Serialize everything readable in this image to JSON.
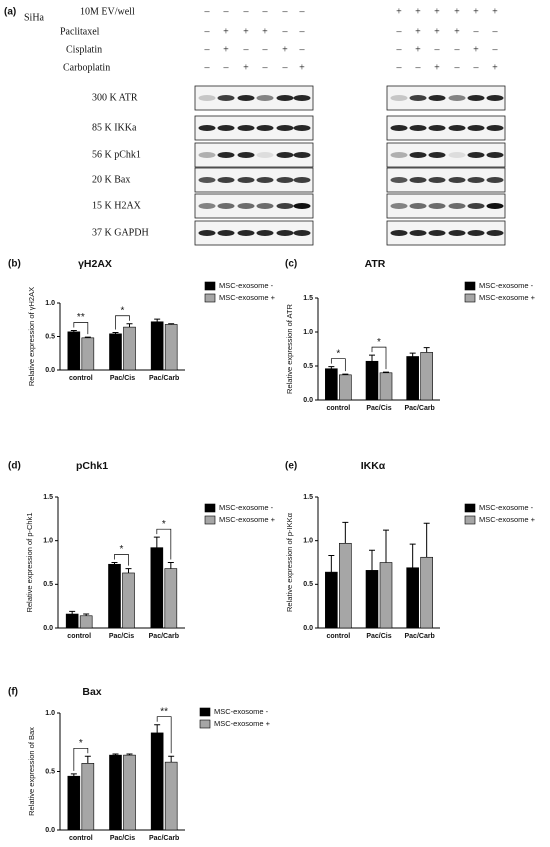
{
  "blot": {
    "panel": "(a)",
    "cell_line": "SiHa",
    "treatments": [
      {
        "name": "10M EV/well",
        "left": [
          "–",
          "–",
          "–",
          "–",
          "–",
          "–"
        ],
        "right": [
          "+",
          "+",
          "+",
          "+",
          "+",
          "+"
        ]
      },
      {
        "name": "Paclitaxel",
        "left": [
          "–",
          "+",
          "+",
          "+",
          "–",
          "–"
        ],
        "right": [
          "–",
          "+",
          "+",
          "+",
          "–",
          "–"
        ]
      },
      {
        "name": "Cisplatin",
        "left": [
          "–",
          "+",
          "–",
          "–",
          "+",
          "–"
        ],
        "right": [
          "–",
          "+",
          "–",
          "–",
          "+",
          "–"
        ]
      },
      {
        "name": "Carboplatin",
        "left": [
          "–",
          "–",
          "+",
          "–",
          "–",
          "+"
        ],
        "right": [
          "–",
          "–",
          "+",
          "–",
          "–",
          "+"
        ]
      }
    ],
    "rows": [
      "300 K ATR",
      "85 K IKKa",
      "56 K pChk1",
      "20 K Bax",
      "15 K H2AX",
      "37 K GAPDH"
    ]
  },
  "chart_data": [
    {
      "type": "bar",
      "panel": "(b)",
      "title": "γH2AX",
      "y_label": "Relative expression of γH2AX",
      "categories": [
        "control",
        "Pac/Cis",
        "Pac/Carb"
      ],
      "series": [
        {
          "name": "MSC-exosome -",
          "color": "#000000",
          "values": [
            0.57,
            0.54,
            0.72
          ],
          "errors": [
            0.02,
            0.02,
            0.04
          ]
        },
        {
          "name": "MSC-exosome +",
          "color": "#a6a6a6",
          "values": [
            0.48,
            0.64,
            0.68
          ],
          "errors": [
            0.01,
            0.05,
            0.01
          ]
        }
      ],
      "ylim": [
        0,
        1
      ],
      "yticks": [
        {
          "value": 0,
          "label": "0.0"
        },
        0.5,
        {
          "value": 1,
          "label": "1.0"
        }
      ],
      "significance": [
        {
          "category": "control",
          "label": "**"
        },
        {
          "category": "Pac/Cis",
          "label": "*"
        }
      ]
    },
    {
      "type": "bar",
      "panel": "(c)",
      "title": "ATR",
      "y_label": "Relative expression of ATR",
      "categories": [
        "control",
        "Pac/Cis",
        "Pac/Carb"
      ],
      "series": [
        {
          "name": "MSC-exosome -",
          "color": "#000000",
          "values": [
            0.46,
            0.57,
            0.64
          ],
          "errors": [
            0.03,
            0.09,
            0.05
          ]
        },
        {
          "name": "MSC-exosome +",
          "color": "#a6a6a6",
          "values": [
            0.37,
            0.4,
            0.7
          ],
          "errors": [
            0.01,
            0.01,
            0.07
          ]
        }
      ],
      "ylim": [
        0,
        1.5
      ],
      "yticks": [
        {
          "value": 0,
          "label": "0.0"
        },
        0.5,
        {
          "value": 1,
          "label": "1.0"
        },
        1.5
      ],
      "significance": [
        {
          "category": "control",
          "label": "*"
        },
        {
          "category": "Pac/Cis",
          "label": "*"
        }
      ]
    },
    {
      "type": "bar",
      "panel": "(d)",
      "title": "pChk1",
      "y_label": "Relative expression of p-Chk1",
      "categories": [
        "control",
        "Pac/Cis",
        "Pac/Carb"
      ],
      "series": [
        {
          "name": "MSC-exosome -",
          "color": "#000000",
          "values": [
            0.16,
            0.73,
            0.92
          ],
          "errors": [
            0.03,
            0.02,
            0.12
          ]
        },
        {
          "name": "MSC-exosome +",
          "color": "#a6a6a6",
          "values": [
            0.14,
            0.63,
            0.68
          ],
          "errors": [
            0.02,
            0.05,
            0.07
          ]
        }
      ],
      "ylim": [
        0,
        1.5
      ],
      "yticks": [
        {
          "value": 0,
          "label": "0.0"
        },
        0.5,
        {
          "value": 1,
          "label": "1.0"
        },
        1.5
      ],
      "significance": [
        {
          "category": "Pac/Cis",
          "label": "*"
        },
        {
          "category": "Pac/Carb",
          "label": "*"
        }
      ]
    },
    {
      "type": "bar",
      "panel": "(e)",
      "title": "IKKα",
      "y_label": "Relative expression of p-IKKα",
      "categories": [
        "control",
        "Pac/Cis",
        "Pac/Carb"
      ],
      "series": [
        {
          "name": "MSC-exosome -",
          "color": "#000000",
          "values": [
            0.64,
            0.66,
            0.69
          ],
          "errors": [
            0.19,
            0.23,
            0.27
          ]
        },
        {
          "name": "MSC-exosome +",
          "color": "#a6a6a6",
          "values": [
            0.97,
            0.75,
            0.81
          ],
          "errors": [
            0.24,
            0.37,
            0.39
          ]
        }
      ],
      "ylim": [
        0,
        1.5
      ],
      "yticks": [
        {
          "value": 0,
          "label": "0.0"
        },
        0.5,
        {
          "value": 1,
          "label": "1.0"
        },
        1.5
      ],
      "significance": []
    },
    {
      "type": "bar",
      "panel": "(f)",
      "title": "Bax",
      "y_label": "Relative expression of Bax",
      "categories": [
        "control",
        "Pac/Cis",
        "Pac/Carb"
      ],
      "series": [
        {
          "name": "MSC-exosome -",
          "color": "#000000",
          "values": [
            0.46,
            0.64,
            0.83
          ],
          "errors": [
            0.02,
            0.01,
            0.07
          ]
        },
        {
          "name": "MSC-exosome +",
          "color": "#a6a6a6",
          "values": [
            0.57,
            0.64,
            0.58
          ],
          "errors": [
            0.06,
            0.01,
            0.05
          ]
        }
      ],
      "ylim": [
        0,
        1
      ],
      "yticks": [
        {
          "value": 0,
          "label": "0.0"
        },
        0.5,
        {
          "value": 1,
          "label": "1.0"
        }
      ],
      "significance": [
        {
          "category": "control",
          "label": "*"
        },
        {
          "category": "Pac/Carb",
          "label": "**"
        }
      ]
    }
  ]
}
